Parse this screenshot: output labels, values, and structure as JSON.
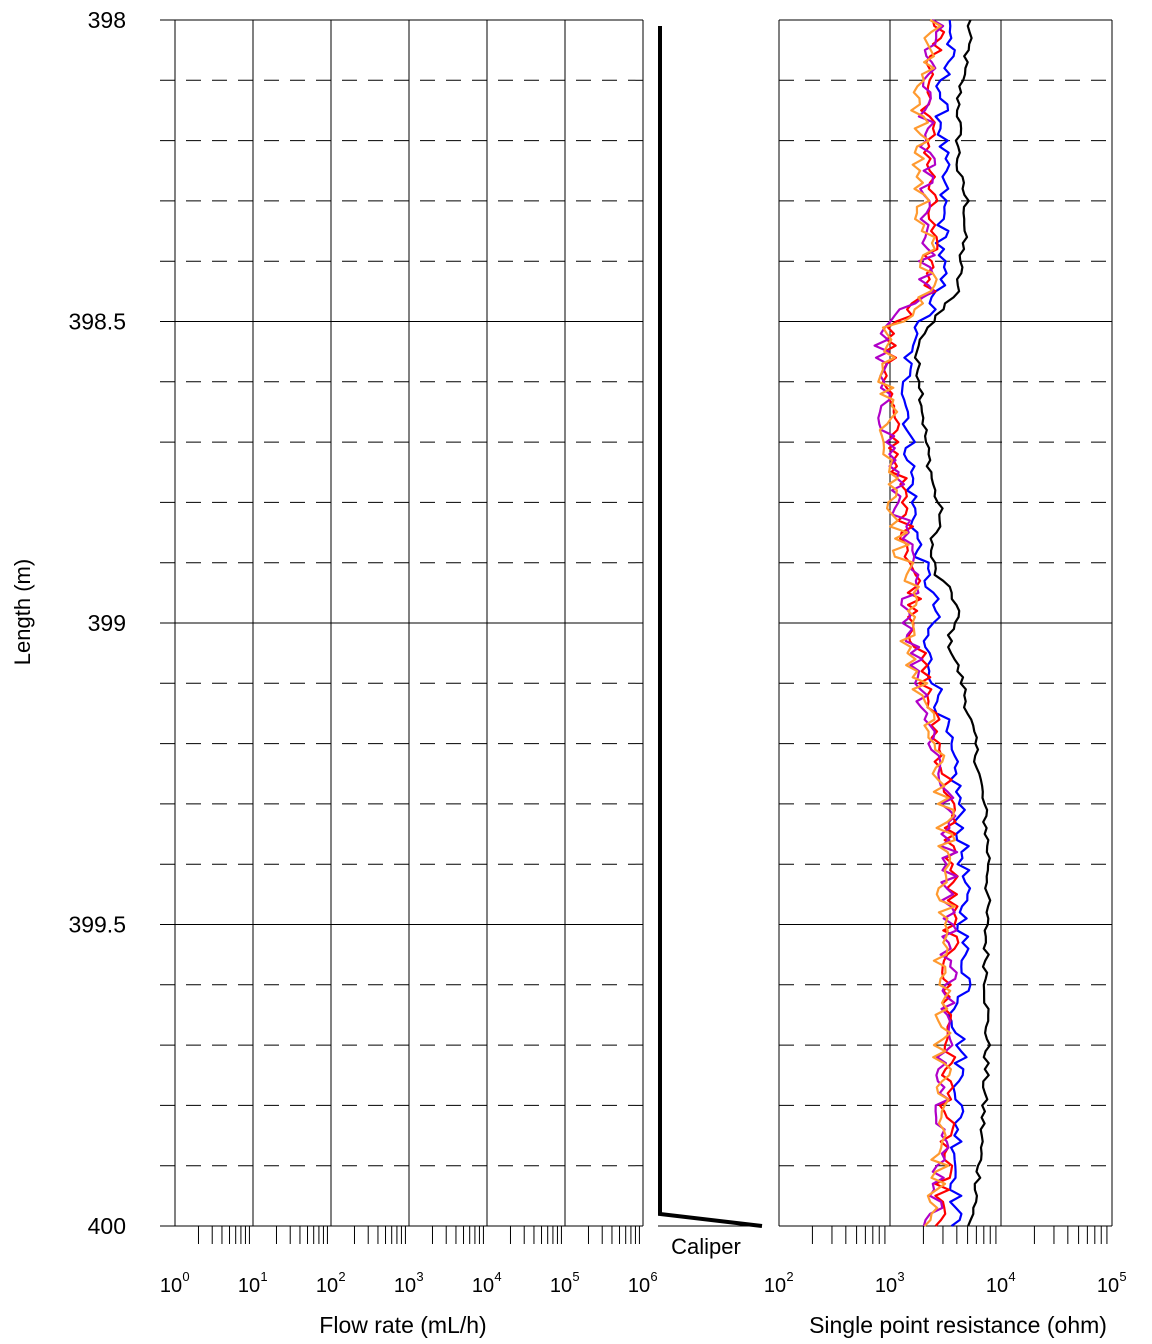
{
  "chart_data": [
    {
      "type": "line",
      "panel": "flow",
      "xlabel": "Flow rate (mL/h)",
      "ylabel": "Length (m)",
      "x_scale": "log",
      "xlim": [
        1,
        1000000
      ],
      "ylim": [
        398,
        400
      ],
      "y_inverted": true,
      "y_ticks": [
        "398",
        "398.5",
        "399",
        "399.5",
        "400"
      ],
      "y_tick_values": [
        398,
        398.5,
        399,
        399.5,
        400
      ],
      "x_tick_bases": [
        "10",
        "10",
        "10",
        "10",
        "10",
        "10",
        "10"
      ],
      "x_tick_exponents": [
        "0",
        "1",
        "2",
        "3",
        "4",
        "5",
        "6"
      ],
      "grid": true,
      "series": []
    },
    {
      "type": "line",
      "panel": "caliper",
      "label": "Caliper",
      "color": "#000000",
      "series": [
        {
          "points": [
            [
              0,
              398.01
            ],
            [
              0,
              399.98
            ],
            [
              1,
              400.0
            ]
          ]
        }
      ]
    },
    {
      "type": "line",
      "panel": "resistance",
      "xlabel": "Single point resistance (ohm)",
      "x_scale": "log",
      "xlim": [
        100,
        100000
      ],
      "ylim": [
        398,
        400
      ],
      "y_inverted": true,
      "x_tick_bases": [
        "10",
        "10",
        "10",
        "10"
      ],
      "x_tick_exponents": [
        "2",
        "3",
        "4",
        "5"
      ],
      "grid": true,
      "series": [
        {
          "color": "#000000",
          "anchors": [
            [
              398.0,
              5200
            ],
            [
              398.05,
              5000
            ],
            [
              398.12,
              4200
            ],
            [
              398.25,
              4100
            ],
            [
              398.3,
              4900
            ],
            [
              398.35,
              4700
            ],
            [
              398.45,
              4000
            ],
            [
              398.48,
              3000
            ],
            [
              398.52,
              2000
            ],
            [
              398.56,
              1700
            ],
            [
              398.6,
              1900
            ],
            [
              398.7,
              2100
            ],
            [
              398.78,
              2500
            ],
            [
              398.82,
              2900
            ],
            [
              398.88,
              2300
            ],
            [
              398.92,
              2600
            ],
            [
              398.95,
              3600
            ],
            [
              398.98,
              4100
            ],
            [
              399.03,
              3400
            ],
            [
              399.1,
              4500
            ],
            [
              399.2,
              5800
            ],
            [
              399.28,
              6700
            ],
            [
              399.32,
              7200
            ],
            [
              399.4,
              7800
            ],
            [
              399.5,
              7300
            ],
            [
              399.7,
              7500
            ],
            [
              399.8,
              7000
            ],
            [
              399.9,
              6400
            ],
            [
              399.96,
              6000
            ],
            [
              400.0,
              5000
            ]
          ],
          "noise": 0.03
        },
        {
          "color": "#0000ff",
          "anchors": [
            [
              398.0,
              3600
            ],
            [
              398.05,
              3400
            ],
            [
              398.12,
              2900
            ],
            [
              398.25,
              3000
            ],
            [
              398.35,
              3000
            ],
            [
              398.45,
              2800
            ],
            [
              398.48,
              2300
            ],
            [
              398.52,
              1600
            ],
            [
              398.58,
              1400
            ],
            [
              398.7,
              1500
            ],
            [
              398.8,
              1600
            ],
            [
              398.88,
              1800
            ],
            [
              398.93,
              2200
            ],
            [
              398.98,
              2600
            ],
            [
              399.03,
              2000
            ],
            [
              399.1,
              2600
            ],
            [
              399.2,
              3300
            ],
            [
              399.28,
              4100
            ],
            [
              399.4,
              4600
            ],
            [
              399.55,
              4600
            ],
            [
              399.6,
              5200
            ],
            [
              399.65,
              3800
            ],
            [
              399.7,
              4400
            ],
            [
              399.8,
              4200
            ],
            [
              399.9,
              4000
            ],
            [
              399.97,
              3900
            ],
            [
              400.0,
              3900
            ]
          ],
          "noise": 0.06
        },
        {
          "color": "#ff0000",
          "anchors": [
            [
              398.0,
              2800
            ],
            [
              398.05,
              2500
            ],
            [
              398.12,
              2200
            ],
            [
              398.25,
              2300
            ],
            [
              398.35,
              2300
            ],
            [
              398.45,
              2300
            ],
            [
              398.48,
              1600
            ],
            [
              398.52,
              1000
            ],
            [
              398.6,
              950
            ],
            [
              398.7,
              1100
            ],
            [
              398.8,
              1300
            ],
            [
              398.88,
              1500
            ],
            [
              398.93,
              1700
            ],
            [
              398.98,
              1700
            ],
            [
              399.03,
              1700
            ],
            [
              399.1,
              2100
            ],
            [
              399.2,
              2700
            ],
            [
              399.28,
              3400
            ],
            [
              399.4,
              3600
            ],
            [
              399.55,
              3500
            ],
            [
              399.6,
              3100
            ],
            [
              399.65,
              3400
            ],
            [
              399.8,
              3300
            ],
            [
              399.9,
              3100
            ],
            [
              400.0,
              2700
            ]
          ],
          "noise": 0.07
        },
        {
          "color": "#b000c8",
          "anchors": [
            [
              398.0,
              2600
            ],
            [
              398.05,
              2300
            ],
            [
              398.12,
              2000
            ],
            [
              398.25,
              2200
            ],
            [
              398.35,
              2200
            ],
            [
              398.45,
              2100
            ],
            [
              398.48,
              1300
            ],
            [
              398.52,
              850
            ],
            [
              398.6,
              800
            ],
            [
              398.7,
              1000
            ],
            [
              398.8,
              1200
            ],
            [
              398.88,
              1400
            ],
            [
              398.93,
              1600
            ],
            [
              398.98,
              1500
            ],
            [
              399.03,
              1600
            ],
            [
              399.1,
              1900
            ],
            [
              399.2,
              2500
            ],
            [
              399.28,
              3200
            ],
            [
              399.4,
              3500
            ],
            [
              399.55,
              3400
            ],
            [
              399.6,
              3600
            ],
            [
              399.65,
              3200
            ],
            [
              399.8,
              3100
            ],
            [
              399.9,
              2900
            ],
            [
              400.0,
              2400
            ]
          ],
          "noise": 0.08
        },
        {
          "color": "#ff9a30",
          "anchors": [
            [
              398.0,
              2500
            ],
            [
              398.05,
              2200
            ],
            [
              398.12,
              1900
            ],
            [
              398.25,
              1800
            ],
            [
              398.35,
              2100
            ],
            [
              398.45,
              2200
            ],
            [
              398.48,
              1700
            ],
            [
              398.52,
              900
            ],
            [
              398.6,
              950
            ],
            [
              398.7,
              1000
            ],
            [
              398.8,
              1100
            ],
            [
              398.88,
              1300
            ],
            [
              398.93,
              1500
            ],
            [
              398.98,
              1400
            ],
            [
              399.03,
              1500
            ],
            [
              399.1,
              1800
            ],
            [
              399.2,
              2400
            ],
            [
              399.28,
              3000
            ],
            [
              399.4,
              3300
            ],
            [
              399.55,
              3000
            ],
            [
              399.6,
              2900
            ],
            [
              399.65,
              3100
            ],
            [
              399.8,
              2900
            ],
            [
              399.9,
              2800
            ],
            [
              400.0,
              2200
            ]
          ],
          "noise": 0.09
        }
      ]
    }
  ]
}
